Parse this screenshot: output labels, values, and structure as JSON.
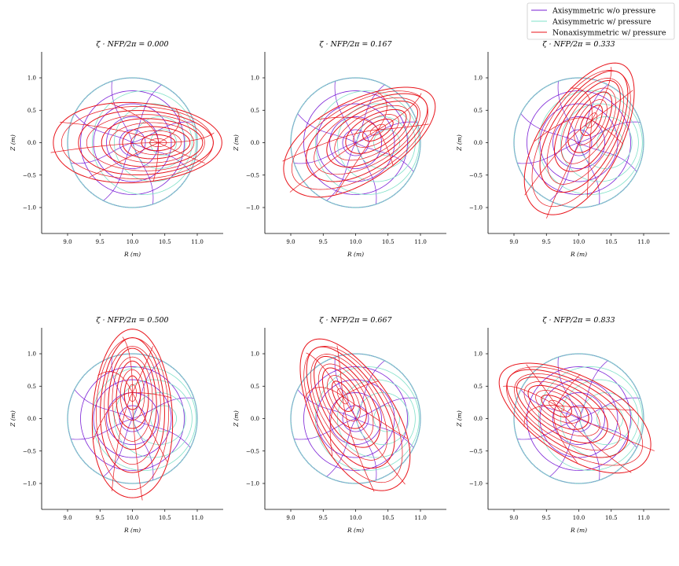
{
  "chart_data": {
    "type": "line",
    "description_note": "",
    "legend": {
      "placement": "top-right",
      "entries": [
        {
          "name": "Axisymmetric w/o pressure",
          "color": "#7a1fd6"
        },
        {
          "name": "Axisymmetric w/ pressure",
          "color": "#7fe0c8"
        },
        {
          "name": "Nonaxisymmetric w/ pressure",
          "color": "#e8131a"
        }
      ]
    },
    "xlim": [
      8.6,
      11.4
    ],
    "ylim": [
      -1.4,
      1.4
    ],
    "xticks": [
      9.0,
      9.5,
      10.0,
      10.5,
      11.0
    ],
    "xtick_labels": [
      "9.0",
      "9.5",
      "10.0",
      "10.5",
      "11.0"
    ],
    "yticks": [
      1.0,
      0.5,
      0.0,
      -0.5,
      -1.0
    ],
    "ytick_labels": [
      "1.0",
      "0.5",
      "0.0",
      "−0.5",
      "−1.0"
    ],
    "xlabel": "R (m)",
    "ylabel": "Z (m)",
    "grid": false,
    "equilibrium": {
      "major_radius": 10.0,
      "minor_radius": 1.0,
      "flux_surface_rho": [
        0.2,
        0.4,
        0.6,
        0.8,
        1.0
      ],
      "shafranov_shift_axis_wo_pressure": 0.0,
      "shafranov_shift_axis_w_pressure": 0.5,
      "nonaxisymmetric_elongation": 1.3,
      "nonaxisymmetric_boundary_rmax": 11.3,
      "nonaxisymmetric_boundary_rmin": 8.7,
      "nonaxisymmetric_boundary_halfheight": 0.62,
      "poloidal_lines": 8
    },
    "panels": [
      {
        "title": "ζ · NFP/2π = 0.000",
        "phase": 0.0
      },
      {
        "title": "ζ · NFP/2π = 0.167",
        "phase": 0.167
      },
      {
        "title": "ζ · NFP/2π = 0.333",
        "phase": 0.333
      },
      {
        "title": "ζ · NFP/2π = 0.500",
        "phase": 0.5
      },
      {
        "title": "ζ · NFP/2π = 0.667",
        "phase": 0.667
      },
      {
        "title": "ζ · NFP/2π = 0.833",
        "phase": 0.833
      }
    ]
  }
}
